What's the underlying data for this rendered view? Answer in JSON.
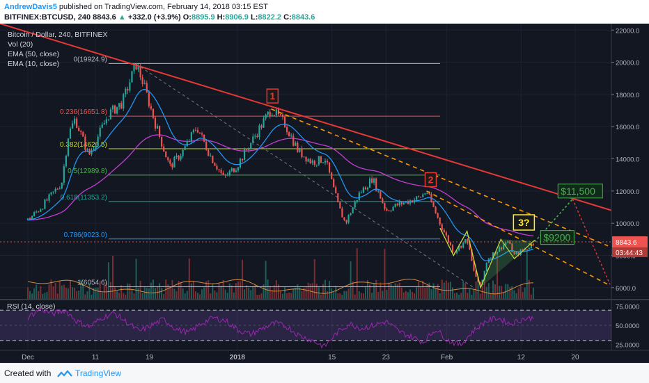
{
  "header": {
    "author": "AndrewDavis5",
    "published_text": "published on TradingView.com, February 14, 2018 03:15 EST",
    "symbol": "BITFINEX:BTCUSD, 240",
    "last": "8843.6",
    "change": "+332.0 (+3.9%)",
    "o_label": "O:",
    "o_val": "8895.9",
    "h_label": "H:",
    "h_val": "8906.9",
    "l_label": "L:",
    "l_val": "8822.2",
    "c_label": "C:",
    "c_val": "8843.6"
  },
  "legend": {
    "title": "Bitcoin / Dollar, 240, BITFINEX",
    "vol": "Vol (20)",
    "ema50": "EMA (50, close)",
    "ema10": "EMA (10, close)"
  },
  "footer": {
    "created_with": "Created with",
    "brand": "TradingView"
  },
  "colors": {
    "background": "#131722",
    "up": "#26a69a",
    "down": "#ef5350",
    "ema10": "#2196f3",
    "ema50": "#c23fd4",
    "trendline": "#e53935",
    "channel": "#ff9800",
    "projection_up": "#4caf50",
    "projection_down": "#e53935",
    "rsi": "#9c27b0"
  },
  "chart_data": [
    {
      "type": "candlestick",
      "title": "Bitcoin / Dollar, 240, BITFINEX",
      "x_ticks": [
        "Dec",
        "11",
        "19",
        "2018",
        "15",
        "23",
        "Feb",
        "12",
        "20"
      ],
      "y_ticks": [
        6000,
        8000,
        10000,
        12000,
        14000,
        16000,
        18000,
        20000,
        22000
      ],
      "y_tick_labels": [
        "6000.0",
        "8000.0",
        "10000.0",
        "12000.0",
        "14000.0",
        "16000.0",
        "18000.0",
        "20000.0",
        "22000.0"
      ],
      "ylim": [
        5300,
        22400
      ],
      "current_price": "8843.6",
      "countdown": "03:44:43",
      "price_path": [
        [
          "Dec 1",
          10200
        ],
        [
          "Dec 3",
          11000
        ],
        [
          "Dec 6",
          12500
        ],
        [
          "Dec 7",
          15500
        ],
        [
          "Dec 8",
          16500
        ],
        [
          "Dec 10",
          14200
        ],
        [
          "Dec 13",
          16800
        ],
        [
          "Dec 15",
          17500
        ],
        [
          "Dec 17",
          19900
        ],
        [
          "Dec 18",
          18800
        ],
        [
          "Dec 20",
          16000
        ],
        [
          "Dec 22",
          13500
        ],
        [
          "Dec 24",
          14500
        ],
        [
          "Dec 26",
          16000
        ],
        [
          "Dec 28",
          14200
        ],
        [
          "Dec 30",
          12800
        ],
        [
          "Jan 1",
          13600
        ],
        [
          "Jan 3",
          15000
        ],
        [
          "Jan 6",
          17100
        ],
        [
          "Jan 8",
          16200
        ],
        [
          "Jan 10",
          14500
        ],
        [
          "Jan 12",
          13800
        ],
        [
          "Jan 14",
          14000
        ],
        [
          "Jan 16",
          11000
        ],
        [
          "Jan 17",
          10000
        ],
        [
          "Jan 19",
          11800
        ],
        [
          "Jan 21",
          12800
        ],
        [
          "Jan 23",
          10800
        ],
        [
          "Jan 25",
          11200
        ],
        [
          "Jan 28",
          11600
        ],
        [
          "Jan 29",
          12000
        ],
        [
          "Jan 31",
          10000
        ],
        [
          "Feb 2",
          8200
        ],
        [
          "Feb 4",
          9000
        ],
        [
          "Feb 5",
          7000
        ],
        [
          "Feb 6",
          6000
        ],
        [
          "Feb 7",
          7800
        ],
        [
          "Feb 9",
          8500
        ],
        [
          "Feb 10",
          8900
        ],
        [
          "Feb 11",
          8000
        ],
        [
          "Feb 13",
          8500
        ],
        [
          "Feb 14",
          8843.6
        ]
      ],
      "fibonacci": [
        {
          "label": "0(19924.9)",
          "value": 19924.9,
          "color": "#b2b5be"
        },
        {
          "label": "0.236(16651.8)",
          "value": 16651.8,
          "color": "#ef5350"
        },
        {
          "label": "0.382(14626.5)",
          "value": 14626.5,
          "color": "#cddc39"
        },
        {
          "label": "0.5(12989.8)",
          "value": 12989.8,
          "color": "#4caf50"
        },
        {
          "label": "0.618(11353.2)",
          "value": 11353.2,
          "color": "#26a69a"
        },
        {
          "label": "0.786(9023.0)",
          "value": 9023.0,
          "color": "#2196f3"
        },
        {
          "label": "1(6054.6)",
          "value": 6054.6,
          "color": "#b2b5be"
        }
      ],
      "annotations": [
        {
          "text": "1",
          "style": "red-box"
        },
        {
          "text": "2",
          "style": "red-box"
        },
        {
          "text": "3?",
          "style": "yellow-box"
        },
        {
          "text": "$11,500",
          "style": "green-label"
        },
        {
          "text": "$9200",
          "style": "green-label"
        }
      ]
    },
    {
      "type": "line",
      "title": "RSI (14, close)",
      "y_ticks": [
        25,
        50,
        75
      ],
      "y_tick_labels": [
        "25.0000",
        "50.0000",
        "75.0000"
      ],
      "ylim": [
        17,
        83
      ],
      "bands": [
        30,
        70
      ],
      "series": [
        {
          "values": [
            60,
            72,
            65,
            70,
            55,
            48,
            60,
            66,
            54,
            42,
            50,
            58,
            45,
            40,
            52,
            60,
            56,
            44,
            38,
            46,
            53,
            48,
            36,
            30,
            22,
            40,
            52,
            46,
            50,
            55,
            42,
            35,
            28,
            45,
            30,
            24,
            42,
            55,
            60,
            52,
            58,
            60
          ]
        }
      ]
    }
  ]
}
